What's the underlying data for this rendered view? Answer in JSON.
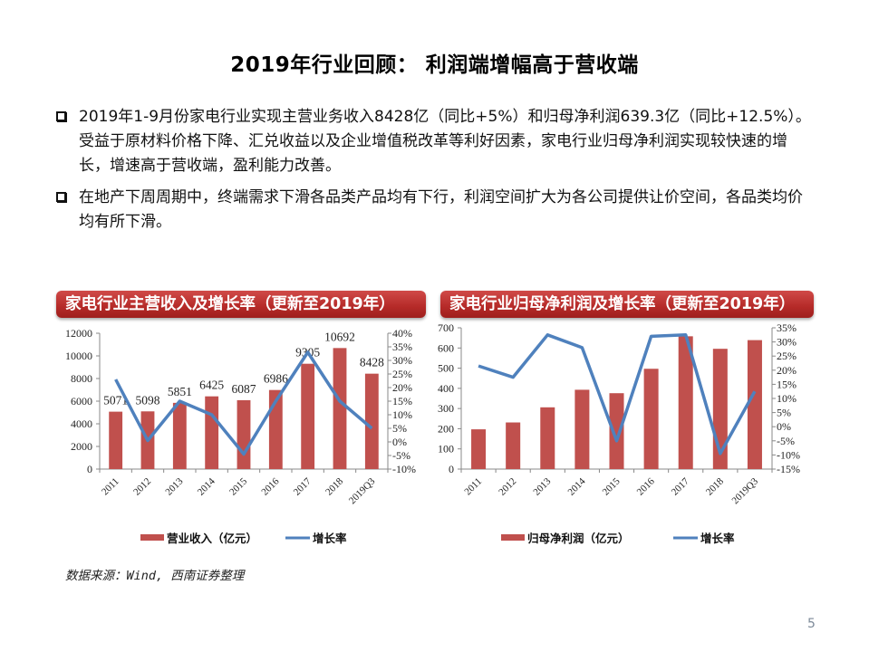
{
  "slide": {
    "title": "2019年行业回顾： 利润端增幅高于营收端",
    "bullets": [
      "2019年1-9月份家电行业实现主营业务收入8428亿（同比+5%）和归母净利润639.3亿（同比+12.5%）。受益于原材料价格下降、汇兑收益以及企业增值税改革等利好因素，家电行业归母净利润实现较快速的增长，增速高于营收端，盈利能力改善。",
      "在地产下周周期中，终端需求下滑各品类产品均有下行，利润空间扩大为各公司提供让价空间，各品类均价均有所下滑。"
    ],
    "source": "数据来源：Wind, 西南证券整理",
    "page_number": "5",
    "colors": {
      "bar": "#c0504d",
      "line": "#4f81bd",
      "header_red": "#b52a28"
    }
  },
  "chart_data": [
    {
      "type": "bar",
      "title": "家电行业主营收入及增长率（更新至2019年）",
      "categories": [
        "2011",
        "2012",
        "2013",
        "2014",
        "2015",
        "2016",
        "2017",
        "2018",
        "2019Q3"
      ],
      "series": [
        {
          "name": "营业收入（亿元）",
          "type": "bar",
          "axis": "left",
          "values": [
            5071,
            5098,
            5851,
            6425,
            6087,
            6986,
            9305,
            10692,
            8428
          ],
          "data_labels": [
            "5071",
            "5098",
            "5851",
            "6425",
            "6087",
            "6986",
            "9305",
            "10692",
            "8428"
          ]
        },
        {
          "name": "增长率",
          "type": "line",
          "axis": "right",
          "unit": "%",
          "values": [
            23,
            0.5,
            15,
            10,
            -4.5,
            15,
            33,
            15,
            5
          ]
        }
      ],
      "ylim_left": [
        0,
        12000
      ],
      "yticks_left": [
        "0",
        "2000",
        "4000",
        "6000",
        "8000",
        "10000",
        "12000"
      ],
      "ylim_right": [
        -10,
        40
      ],
      "yticks_right": [
        "-10%",
        "-5%",
        "0%",
        "5%",
        "10%",
        "15%",
        "20%",
        "25%",
        "30%",
        "35%",
        "40%"
      ],
      "legend": [
        "营业收入（亿元）",
        "增长率"
      ],
      "legend_position": "bottom",
      "grid": false
    },
    {
      "type": "bar",
      "title": "家电行业归母净利润及增长率（更新至2019年）",
      "categories": [
        "2011",
        "2012",
        "2013",
        "2014",
        "2015",
        "2016",
        "2017",
        "2018",
        "2019Q3"
      ],
      "series": [
        {
          "name": "归母净利润（亿元）",
          "type": "bar",
          "axis": "left",
          "values": [
            197,
            231,
            306,
            393,
            376,
            497,
            658,
            596,
            639
          ]
        },
        {
          "name": "增长率",
          "type": "line",
          "axis": "right",
          "unit": "%",
          "values": [
            21.5,
            17.5,
            32.5,
            28,
            -5,
            32,
            32.5,
            -9.5,
            12.5
          ]
        }
      ],
      "ylim_left": [
        0,
        700
      ],
      "yticks_left": [
        "0",
        "100",
        "200",
        "300",
        "400",
        "500",
        "600",
        "700"
      ],
      "ylim_right": [
        -15,
        35
      ],
      "yticks_right": [
        "-15%",
        "-10%",
        "-5%",
        "0%",
        "5%",
        "10%",
        "15%",
        "20%",
        "25%",
        "30%",
        "35%"
      ],
      "legend": [
        "归母净利润（亿元）",
        "增长率"
      ],
      "legend_position": "bottom",
      "grid": false
    }
  ]
}
